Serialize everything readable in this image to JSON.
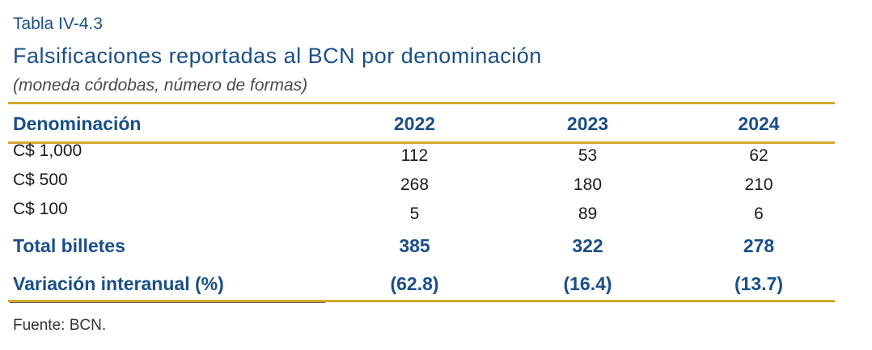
{
  "table_label": "Tabla IV-4.3",
  "title": "Falsificaciones reportadas al BCN por denominación",
  "subtitle": "(moneda córdobas, número de formas)",
  "headers": [
    "Denominación",
    "2022",
    "2023",
    "2024"
  ],
  "rows": [
    {
      "label": "C$ 1,000",
      "values": [
        "112",
        "53",
        "62"
      ]
    },
    {
      "label": "C$ 500",
      "values": [
        "268",
        "180",
        "210"
      ]
    },
    {
      "label": "C$ 100",
      "values": [
        "5",
        "89",
        "6"
      ]
    }
  ],
  "total": {
    "label": "Total billetes",
    "values": [
      "385",
      "322",
      "278"
    ]
  },
  "variation": {
    "label": "Variación interanual (%)",
    "values": [
      "(62.8)",
      "(16.4)",
      "(13.7)"
    ]
  },
  "source": "Fuente: BCN.",
  "colors": {
    "accent_text": "#1a4f86",
    "rule": "#d4a82e"
  }
}
